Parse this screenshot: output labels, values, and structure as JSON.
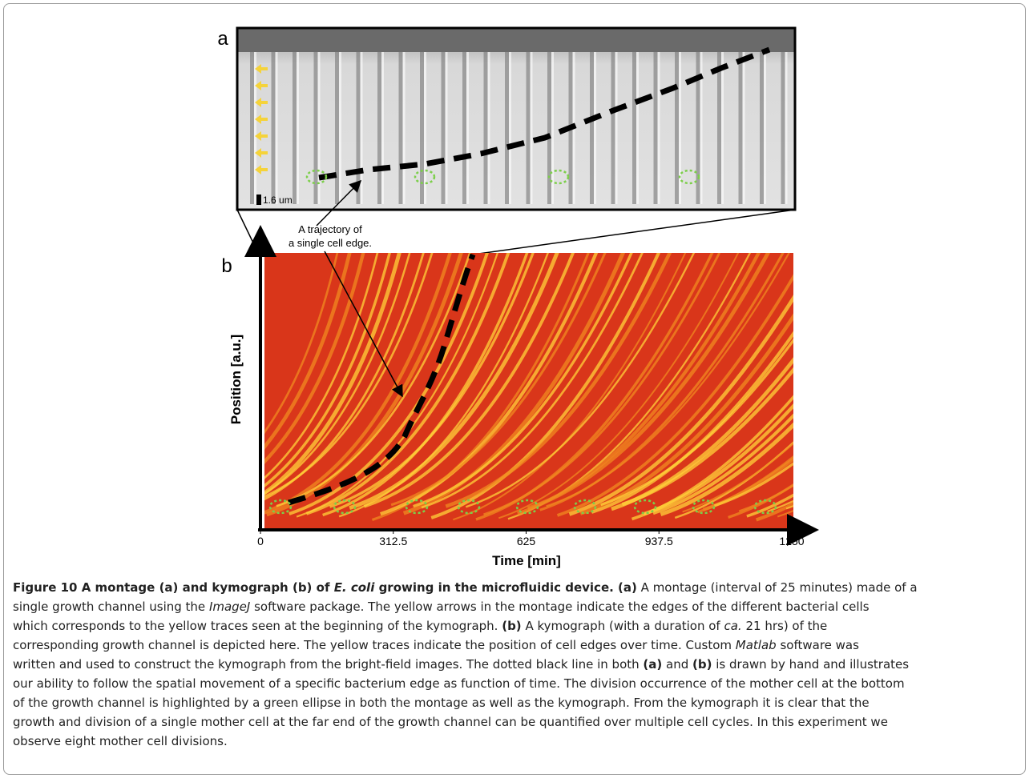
{
  "figure": {
    "panel_a": {
      "label": "a",
      "scale_bar": "1.6 um"
    },
    "annotation": [
      "A trajectory of",
      "a single cell edge."
    ],
    "panel_b": {
      "label": "b",
      "xlabel": "Time [min]",
      "ylabel": "Position [a.u.]",
      "xlim": [
        0,
        1250
      ],
      "xticks": [
        0,
        312.5,
        625,
        937.5,
        1250
      ]
    },
    "caption": [
      [
        {
          "text": "Figure 10 A montage (a) and kymograph (b) of ",
          "style": "b"
        },
        {
          "text": "E. coli",
          "style": "bi"
        },
        {
          "text": " growing in the microfluidic device. (a)",
          "style": "b"
        },
        {
          "text": " A montage (interval of 25 minutes) made of a"
        }
      ],
      [
        {
          "text": "single growth channel using the "
        },
        {
          "text": "ImageJ",
          "style": "i"
        },
        {
          "text": " software package. The yellow arrows in the montage indicate the edges of the different bacterial cells"
        }
      ],
      [
        {
          "text": "which corresponds to the yellow traces seen at the beginning of the kymograph. "
        },
        {
          "text": "(b)",
          "style": "b"
        },
        {
          "text": " A kymograph (with a duration of "
        },
        {
          "text": "ca.",
          "style": "i"
        },
        {
          "text": " 21 hrs) of the"
        }
      ],
      [
        {
          "text": "corresponding growth channel is depicted here. The yellow traces indicate the position of cell edges over time. Custom "
        },
        {
          "text": "Matlab",
          "style": "i"
        },
        {
          "text": " software was"
        }
      ],
      [
        {
          "text": "written and used to construct the kymograph from the bright-field images. The dotted black line in both "
        },
        {
          "text": "(a)",
          "style": "b"
        },
        {
          "text": " and "
        },
        {
          "text": "(b)",
          "style": "b"
        },
        {
          "text": " is drawn by hand and illustrates"
        }
      ],
      [
        {
          "text": "our ability to follow the spatial movement of a specific bacterium edge as function of time. The division occurrence of the mother cell at the bottom"
        }
      ],
      [
        {
          "text": "of the growth channel is highlighted by a green ellipse in both the montage as well as the kymograph. From the kymograph it is clear that the"
        }
      ],
      [
        {
          "text": "growth and division of a single mother cell at the far end of the growth channel can be quantified over multiple cell cycles. In this experiment we"
        }
      ],
      [
        {
          "text": "observe eight mother cell divisions."
        }
      ]
    ]
  }
}
